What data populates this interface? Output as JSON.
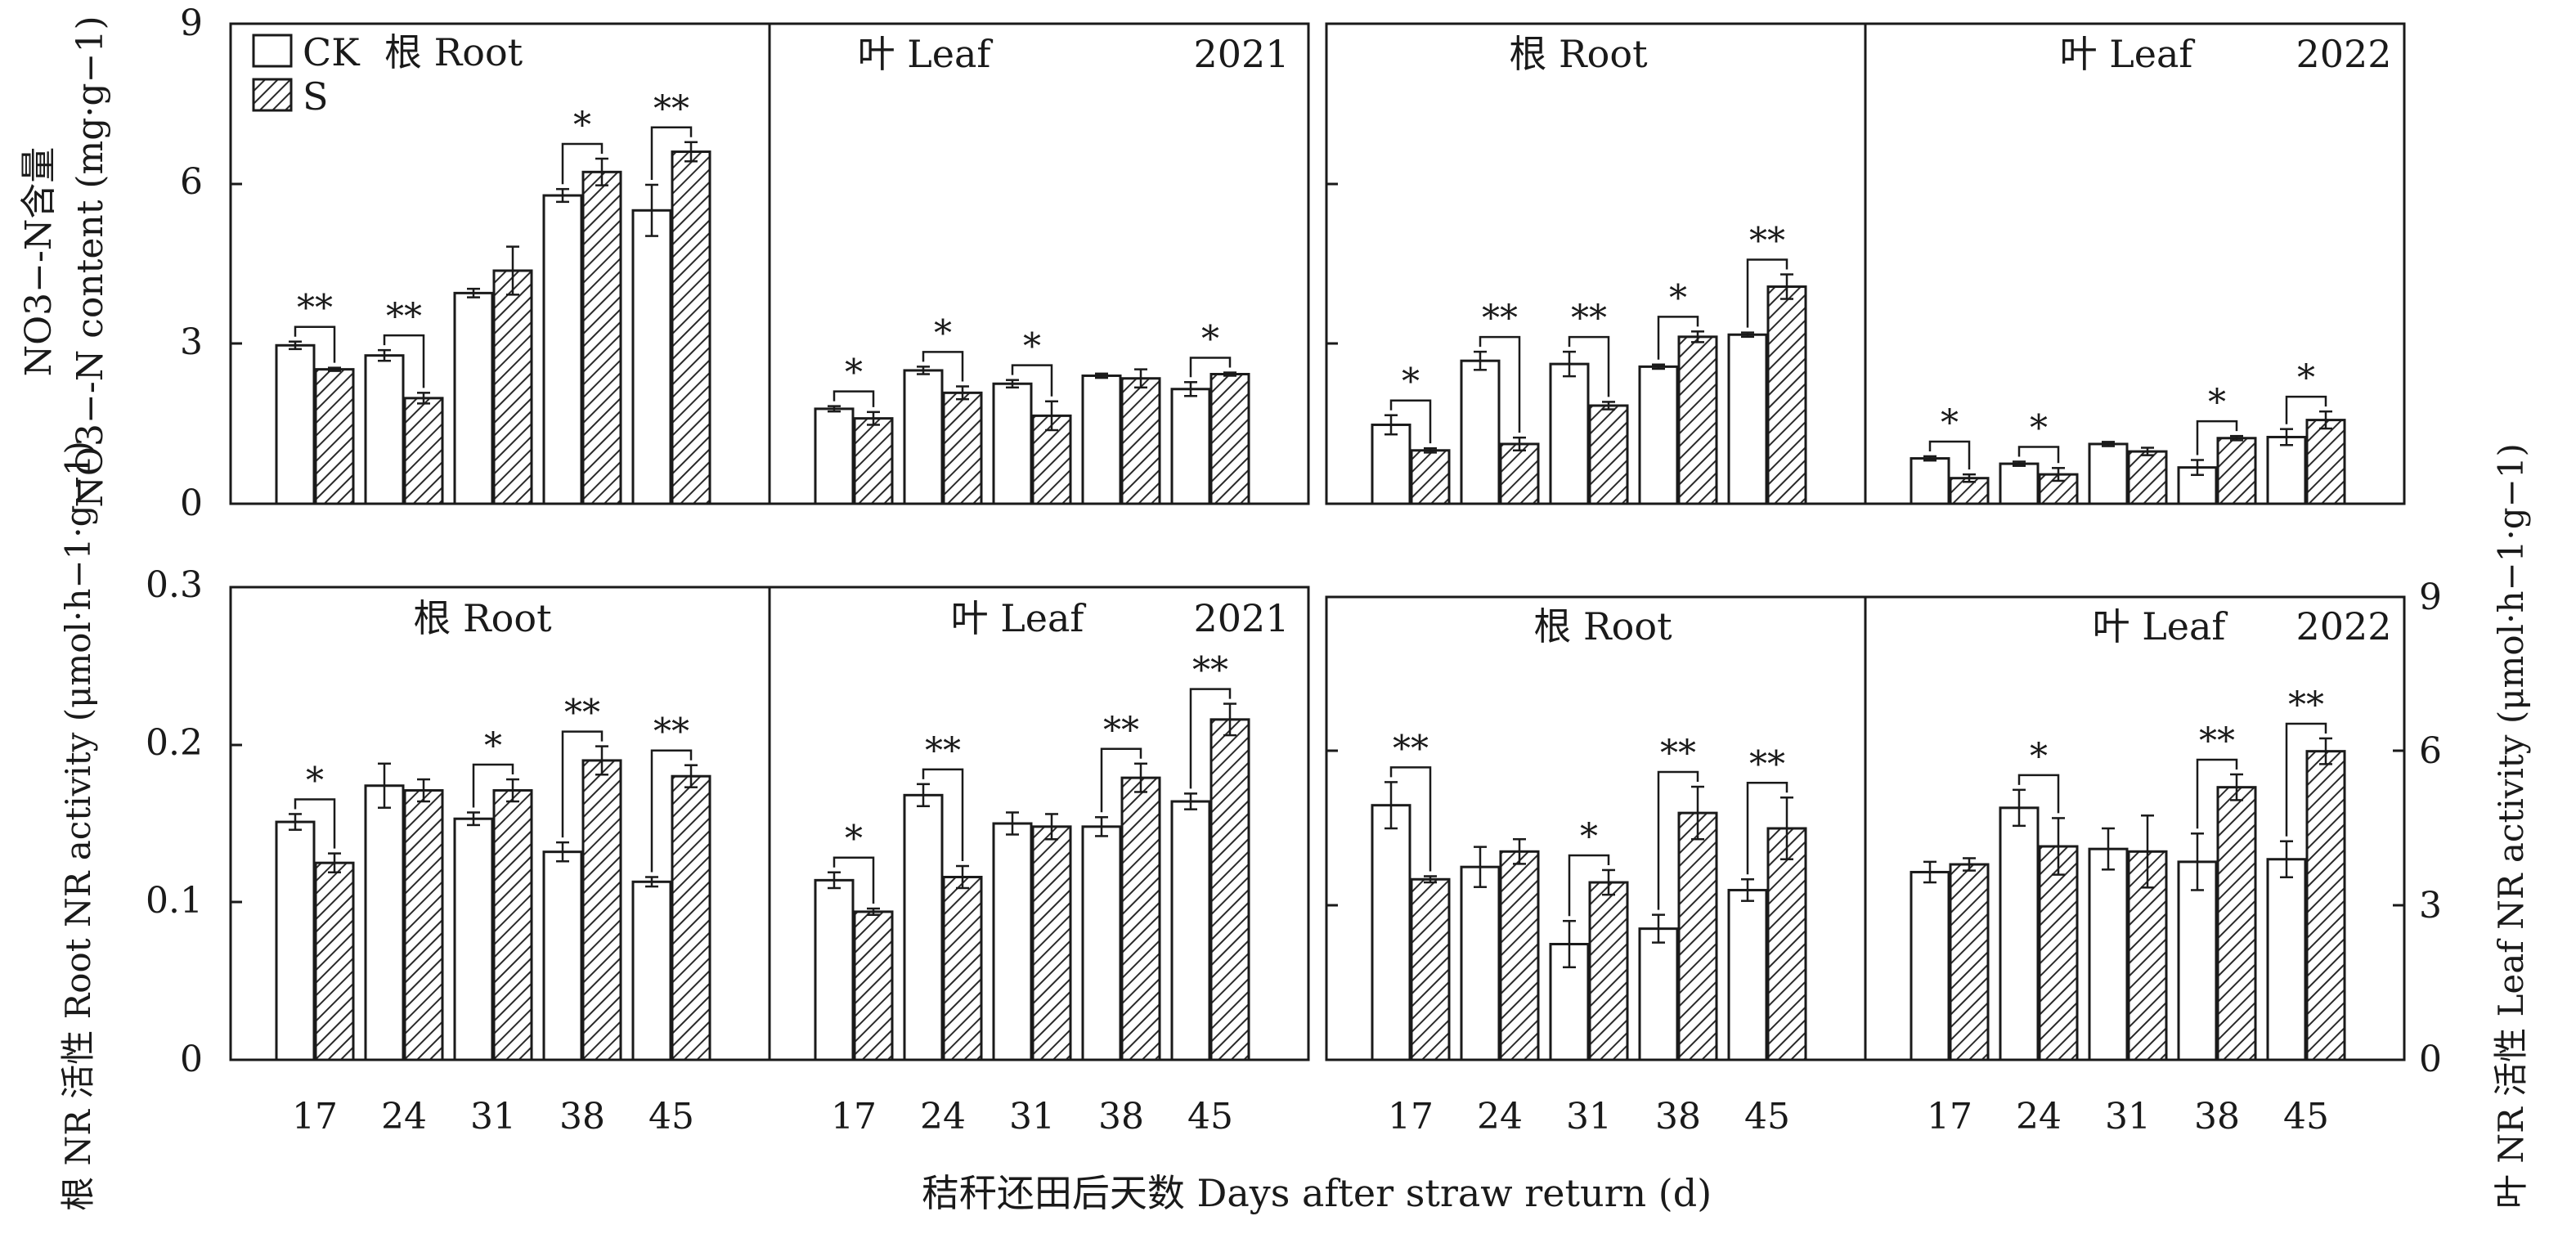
{
  "x_axis_title": "秸秆还田后天数 Days after straw return (d)",
  "legend": {
    "ck": "CK",
    "s": "S",
    "panel_label_prefix": "根 Root"
  },
  "colors": {
    "ck_fill": "#ffffff",
    "s_hatch": "#2a2a2a",
    "axis": "#1a1a1a"
  },
  "rows": [
    {
      "ylabel_left_line1": "NO3−-N含量",
      "ylabel_left_line2": "NO3−-N content (mg·g−1)",
      "y_ticks": [
        "0",
        "3",
        "6",
        "9"
      ]
    },
    {
      "ylabel_left": "根 NR 活性 Root NR activity (μmol·h−1·g−1)",
      "ylabel_right": "叶 NR 活性 Leaf NR activity (μmol·h−1·g−1)",
      "y_ticks_left": [
        "0",
        "0.1",
        "0.2",
        "0.3"
      ],
      "y_ticks_right": [
        "0",
        "3",
        "6",
        "9"
      ]
    }
  ],
  "chart_data": [
    {
      "type": "bar",
      "id": "nitrate-2021-root",
      "panel_label": "根 Root",
      "year": "",
      "categories": [
        "17",
        "24",
        "31",
        "38",
        "45"
      ],
      "ylim": [
        0,
        9
      ],
      "series": [
        {
          "name": "CK",
          "values": [
            2.97,
            2.78,
            3.95,
            5.78,
            5.5
          ],
          "errors": [
            0.07,
            0.1,
            0.08,
            0.12,
            0.48
          ]
        },
        {
          "name": "S",
          "values": [
            2.52,
            1.98,
            4.37,
            6.22,
            6.6
          ],
          "errors": [
            0.03,
            0.1,
            0.45,
            0.25,
            0.18
          ]
        }
      ],
      "significance": [
        "**",
        "**",
        "",
        "*",
        "**"
      ]
    },
    {
      "type": "bar",
      "id": "nitrate-2021-leaf",
      "panel_label": "叶 Leaf",
      "year": "2021",
      "categories": [
        "17",
        "24",
        "31",
        "38",
        "45"
      ],
      "ylim": [
        0,
        9
      ],
      "series": [
        {
          "name": "CK",
          "values": [
            1.78,
            2.5,
            2.25,
            2.4,
            2.15
          ],
          "errors": [
            0.05,
            0.07,
            0.07,
            0.04,
            0.13
          ]
        },
        {
          "name": "S",
          "values": [
            1.6,
            2.08,
            1.65,
            2.35,
            2.43
          ],
          "errors": [
            0.12,
            0.12,
            0.27,
            0.17,
            0.03
          ]
        }
      ],
      "significance": [
        "*",
        "*",
        "*",
        "",
        "*"
      ]
    },
    {
      "type": "bar",
      "id": "nitrate-2022-root",
      "panel_label": "根 Root",
      "year": "",
      "categories": [
        "17",
        "24",
        "31",
        "38",
        "45"
      ],
      "ylim": [
        0,
        9
      ],
      "series": [
        {
          "name": "CK",
          "values": [
            1.48,
            2.68,
            2.62,
            2.57,
            3.17
          ],
          "errors": [
            0.18,
            0.17,
            0.23,
            0.04,
            0.04
          ]
        },
        {
          "name": "S",
          "values": [
            1.0,
            1.12,
            1.84,
            3.13,
            4.07
          ],
          "errors": [
            0.04,
            0.12,
            0.07,
            0.1,
            0.23
          ]
        }
      ],
      "significance": [
        "*",
        "**",
        "**",
        "*",
        "**"
      ]
    },
    {
      "type": "bar",
      "id": "nitrate-2022-leaf",
      "panel_label": "叶 Leaf",
      "year": "2022",
      "categories": [
        "17",
        "24",
        "31",
        "38",
        "45"
      ],
      "ylim": [
        0,
        9
      ],
      "series": [
        {
          "name": "CK",
          "values": [
            0.85,
            0.75,
            1.12,
            0.68,
            1.25
          ],
          "errors": [
            0.04,
            0.04,
            0.04,
            0.14,
            0.15
          ]
        },
        {
          "name": "S",
          "values": [
            0.48,
            0.55,
            0.98,
            1.23,
            1.57
          ],
          "errors": [
            0.07,
            0.12,
            0.07,
            0.04,
            0.16
          ]
        }
      ],
      "significance": [
        "*",
        "*",
        "",
        "*",
        "*"
      ]
    },
    {
      "type": "bar",
      "id": "nr-2021-root",
      "panel_label": "根 Root",
      "year": "",
      "categories": [
        "17",
        "24",
        "31",
        "38",
        "45"
      ],
      "ylim": [
        0,
        0.3
      ],
      "series": [
        {
          "name": "CK",
          "values": [
            0.151,
            0.174,
            0.153,
            0.132,
            0.113
          ],
          "errors": [
            0.005,
            0.014,
            0.004,
            0.006,
            0.003
          ]
        },
        {
          "name": "S",
          "values": [
            0.125,
            0.171,
            0.171,
            0.19,
            0.18
          ],
          "errors": [
            0.006,
            0.007,
            0.007,
            0.009,
            0.007
          ]
        }
      ],
      "significance": [
        "*",
        "",
        "*",
        "**",
        "**"
      ]
    },
    {
      "type": "bar",
      "id": "nr-2021-leaf",
      "panel_label": "叶 Leaf",
      "year": "2021",
      "categories": [
        "17",
        "24",
        "31",
        "38",
        "45"
      ],
      "ylim": [
        0,
        0.3
      ],
      "series": [
        {
          "name": "CK",
          "values": [
            0.114,
            0.168,
            0.15,
            0.148,
            0.164
          ],
          "errors": [
            0.005,
            0.007,
            0.007,
            0.006,
            0.005
          ]
        },
        {
          "name": "S",
          "values": [
            0.094,
            0.116,
            0.148,
            0.179,
            0.216
          ],
          "errors": [
            0.002,
            0.007,
            0.008,
            0.009,
            0.01
          ]
        }
      ],
      "significance": [
        "*",
        "**",
        "",
        "**",
        "**"
      ]
    },
    {
      "type": "bar",
      "id": "nr-2022-root",
      "panel_label": "根 Root",
      "year": "",
      "categories": [
        "17",
        "24",
        "31",
        "38",
        "45"
      ],
      "ylim": [
        0,
        0.3
      ],
      "series": [
        {
          "name": "CK",
          "values": [
            0.165,
            0.125,
            0.075,
            0.085,
            0.11
          ],
          "errors": [
            0.015,
            0.013,
            0.015,
            0.009,
            0.007
          ]
        },
        {
          "name": "S",
          "values": [
            0.117,
            0.135,
            0.115,
            0.16,
            0.15
          ],
          "errors": [
            0.002,
            0.008,
            0.008,
            0.017,
            0.02
          ]
        }
      ],
      "significance": [
        "**",
        "",
        "*",
        "**",
        "**"
      ]
    },
    {
      "type": "bar",
      "id": "nr-2022-leaf",
      "panel_label": "叶 Leaf",
      "year": "2022",
      "categories": [
        "17",
        "24",
        "31",
        "38",
        "45"
      ],
      "ylim": [
        0,
        9
      ],
      "series": [
        {
          "name": "CK",
          "values": [
            3.65,
            4.9,
            4.1,
            3.85,
            3.9
          ],
          "errors": [
            0.2,
            0.35,
            0.4,
            0.55,
            0.35
          ]
        },
        {
          "name": "S",
          "values": [
            3.8,
            4.15,
            4.05,
            5.3,
            6.0
          ],
          "errors": [
            0.12,
            0.55,
            0.7,
            0.25,
            0.25
          ]
        }
      ],
      "significance": [
        "",
        "*",
        "",
        "**",
        "**"
      ]
    }
  ]
}
